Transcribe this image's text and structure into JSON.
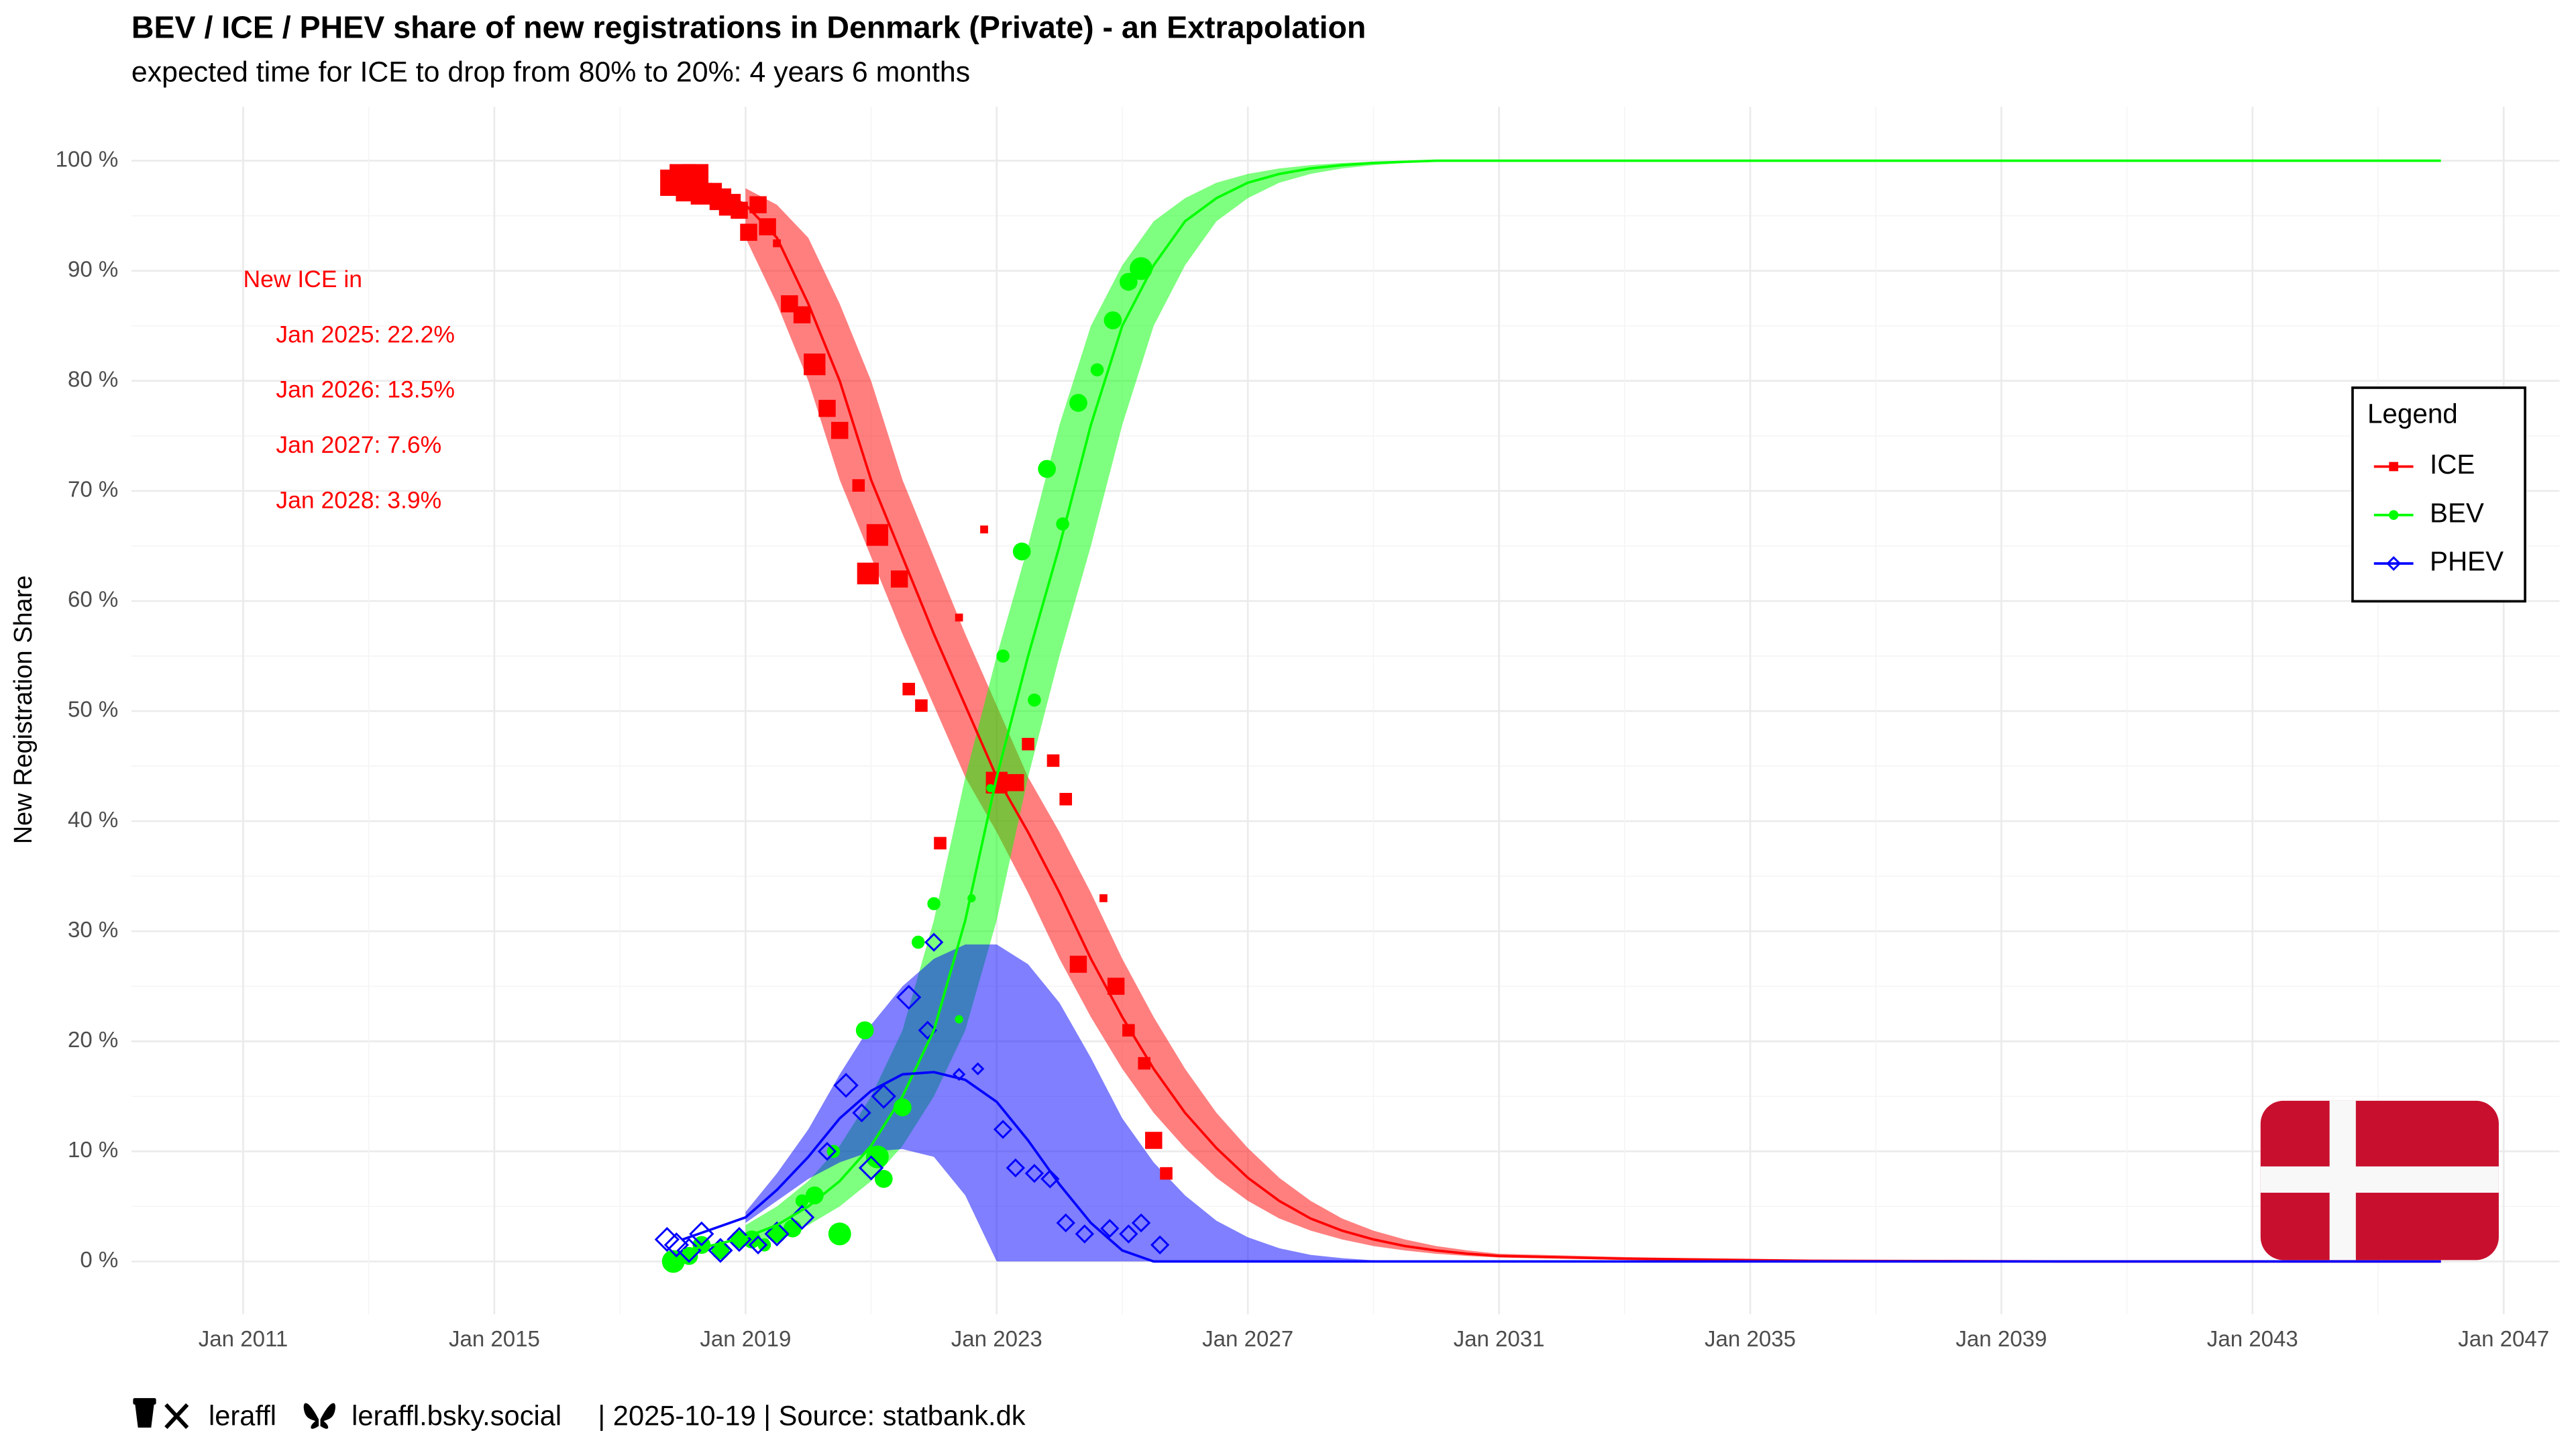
{
  "chart_data": {
    "type": "scatter",
    "title": "BEV / ICE / PHEV share of new registrations in Denmark (Private) - an Extrapolation",
    "subtitle": "expected time for ICE to drop from 80% to 20%: 4 years 6 months",
    "y_label": "New Registration Share",
    "annotations": [
      "New ICE in",
      "Jan 2025: 22.2%",
      "Jan 2026: 13.5%",
      "Jan 2027: 7.6%",
      "Jan 2028: 3.9%"
    ],
    "caption": [
      "leraffl",
      "leraffl.bsky.social",
      "| 2025-10-19 | Source: statbank.dk"
    ],
    "legend_title": "Legend",
    "legend": "right",
    "grid": true,
    "xlim": [
      2009.22,
      2047.89
    ],
    "ylim": [
      -4.8,
      104.9
    ],
    "xticks": [
      {
        "value": 2011,
        "label": "Jan 2011"
      },
      {
        "value": 2015,
        "label": "Jan 2015"
      },
      {
        "value": 2019,
        "label": "Jan 2019"
      },
      {
        "value": 2023,
        "label": "Jan 2023"
      },
      {
        "value": 2027,
        "label": "Jan 2027"
      },
      {
        "value": 2031,
        "label": "Jan 2031"
      },
      {
        "value": 2035,
        "label": "Jan 2035"
      },
      {
        "value": 2039,
        "label": "Jan 2039"
      },
      {
        "value": 2043,
        "label": "Jan 2043"
      },
      {
        "value": 2047,
        "label": "Jan 2047"
      }
    ],
    "yticks": [
      {
        "value": 0,
        "label": "0 %"
      },
      {
        "value": 10,
        "label": "10 %"
      },
      {
        "value": 20,
        "label": "20 %"
      },
      {
        "value": 30,
        "label": "30 %"
      },
      {
        "value": 40,
        "label": "40 %"
      },
      {
        "value": 50,
        "label": "50 %"
      },
      {
        "value": 60,
        "label": "60 %"
      },
      {
        "value": 70,
        "label": "70 %"
      },
      {
        "value": 80,
        "label": "80 %"
      },
      {
        "value": 90,
        "label": "90 %"
      },
      {
        "value": 100,
        "label": "100 %"
      }
    ],
    "x_fit": [
      2018,
      2018.5,
      2019,
      2019.5,
      2020,
      2020.5,
      2021,
      2021.5,
      2022,
      2022.5,
      2023,
      2023.5,
      2024,
      2024.5,
      2025,
      2025.5,
      2026,
      2026.5,
      2027,
      2027.5,
      2028,
      2028.5,
      2029,
      2029.5,
      2030,
      2030.5,
      2031,
      2033,
      2036,
      2040,
      2046
    ],
    "series": [
      {
        "name": "ICE",
        "color": "#ff0000",
        "shape": "square",
        "x": [
          2017.85,
          2018.0,
          2018.1,
          2018.2,
          2018.3,
          2018.45,
          2018.6,
          2018.75,
          2018.9,
          2019.05,
          2019.2,
          2019.35,
          2019.5,
          2019.7,
          2019.9,
          2020.1,
          2020.3,
          2020.5,
          2020.8,
          2021.1,
          2020.95,
          2021.45,
          2021.6,
          2021.8,
          2022.1,
          2022.4,
          2022.8,
          2023.0,
          2023.3,
          2023.5,
          2023.9,
          2024.1,
          2024.3,
          2024.7,
          2024.9,
          2025.1,
          2025.35,
          2025.5,
          2025.7
        ],
        "values": [
          98,
          98.5,
          97.5,
          98.5,
          97,
          97,
          96.5,
          96,
          95.5,
          93.5,
          96,
          94,
          92.5,
          87,
          86,
          81.5,
          77.5,
          75.5,
          70.5,
          66,
          62.5,
          62,
          52,
          50.5,
          38,
          58.5,
          66.5,
          43.5,
          43.5,
          47,
          45.5,
          42,
          27,
          33,
          25,
          21,
          18,
          11,
          8
        ],
        "sizes": [
          5,
          5,
          5,
          5,
          4,
          4,
          4,
          4,
          3,
          3,
          3,
          3,
          1,
          3,
          3,
          4,
          3,
          3,
          2,
          4,
          4,
          3,
          2,
          2,
          2,
          1,
          1,
          4,
          3,
          2,
          2,
          2,
          3,
          1,
          3,
          2,
          2,
          3,
          2
        ],
        "fit": [
          98,
          97.5,
          96,
          93,
          87,
          80,
          71,
          64,
          57,
          50.5,
          44,
          39,
          33.5,
          27.5,
          22.2,
          17.5,
          13.5,
          10.3,
          7.6,
          5.5,
          3.9,
          2.8,
          2,
          1.4,
          1,
          0.7,
          0.5,
          0.25,
          0.06,
          0,
          0
        ],
        "fit_lower": [
          null,
          null,
          93,
          87,
          80,
          71,
          64,
          57,
          50.5,
          44,
          39,
          33.5,
          27.5,
          22.2,
          17.5,
          13.5,
          10.3,
          7.6,
          5.5,
          3.9,
          2.8,
          2,
          1.4,
          1,
          0.7,
          0.5,
          0.35,
          0.15,
          0.03,
          0,
          0
        ],
        "fit_upper": [
          null,
          null,
          97.5,
          96,
          93,
          87,
          80,
          71,
          64,
          57,
          50.5,
          44,
          39,
          33.5,
          27.5,
          22.2,
          17.5,
          13.5,
          10.3,
          7.6,
          5.5,
          3.9,
          2.8,
          2,
          1.4,
          1,
          0.7,
          0.4,
          0.1,
          0,
          0
        ]
      },
      {
        "name": "BEV",
        "color": "#00ff00",
        "shape": "circle",
        "x": [
          2017.85,
          2018.1,
          2018.3,
          2018.6,
          2018.9,
          2019.1,
          2019.3,
          2019.5,
          2019.75,
          2019.9,
          2020.1,
          2020.4,
          2020.5,
          2020.9,
          2021.1,
          2021.2,
          2021.5,
          2021.75,
          2022.0,
          2022.4,
          2022.6,
          2022.9,
          2023.1,
          2023.4,
          2023.6,
          2023.8,
          2024.05,
          2024.3,
          2024.6,
          2024.85,
          2025.1,
          2025.3
        ],
        "values": [
          0,
          0.5,
          1.5,
          1,
          2,
          2,
          1.5,
          2.5,
          3,
          5.5,
          6,
          10,
          2.5,
          21,
          9.5,
          7.5,
          14,
          29,
          32.5,
          22,
          33,
          43,
          55,
          64.5,
          51,
          72,
          67,
          78,
          81,
          85.5,
          89,
          90.2
        ],
        "sizes": [
          4,
          3,
          3,
          3,
          3,
          3,
          2,
          3,
          3,
          2,
          3,
          2,
          4,
          3,
          4,
          3,
          3,
          2,
          2,
          1,
          1,
          1,
          2,
          3,
          2,
          3,
          2,
          3,
          2,
          3,
          3,
          4
        ],
        "fit": [
          1,
          1.5,
          2.2,
          3.3,
          5,
          7.3,
          10.5,
          15,
          21,
          31,
          44,
          55,
          65,
          76,
          85,
          90.5,
          94.5,
          96.6,
          98,
          98.8,
          99.3,
          99.6,
          99.8,
          99.9,
          100,
          100,
          100,
          100,
          100,
          100,
          100
        ],
        "fit_lower": [
          null,
          null,
          1.5,
          2.2,
          3.3,
          5,
          7.3,
          10.5,
          15,
          21,
          31,
          44,
          55,
          65,
          76,
          85,
          90.5,
          94.5,
          96.6,
          98,
          98.8,
          99.3,
          99.6,
          99.8,
          99.9,
          100,
          100,
          100,
          100,
          100,
          100
        ],
        "fit_upper": [
          null,
          null,
          3.3,
          5,
          7.3,
          10.5,
          15,
          21,
          31,
          44,
          55,
          65,
          76,
          85,
          90.5,
          94.5,
          96.6,
          98,
          98.8,
          99.3,
          99.6,
          99.8,
          99.9,
          100,
          100,
          100,
          100,
          100,
          100,
          100,
          100
        ]
      },
      {
        "name": "PHEV",
        "color": "#0000ff",
        "shape": "diamond",
        "x": [
          2017.75,
          2017.9,
          2018.1,
          2018.3,
          2018.6,
          2018.9,
          2019.2,
          2019.5,
          2019.9,
          2020.3,
          2020.6,
          2020.85,
          2021.0,
          2021.2,
          2021.6,
          2021.9,
          2022.0,
          2022.4,
          2022.7,
          2023.1,
          2023.3,
          2023.6,
          2023.85,
          2024.1,
          2024.4,
          2024.8,
          2025.1,
          2025.3,
          2025.6
        ],
        "values": [
          2,
          1.5,
          1,
          2.5,
          1,
          2,
          1.5,
          2.5,
          4,
          10,
          16,
          13.5,
          8.5,
          15,
          24,
          21,
          29,
          17,
          17.5,
          12,
          8.5,
          8,
          7.5,
          3.5,
          2.5,
          3,
          2.5,
          3.5,
          1.5
        ],
        "sizes": [
          3,
          3,
          3,
          3,
          3,
          3,
          2,
          3,
          3,
          2,
          3,
          2,
          3,
          3,
          3,
          2,
          2,
          1,
          1,
          2,
          2,
          2,
          2,
          2,
          2,
          2,
          2,
          2,
          2
        ],
        "fit": [
          2,
          3,
          4,
          6.5,
          9.5,
          13,
          15.5,
          17,
          17.2,
          16.5,
          14.5,
          11,
          7,
          3.5,
          1,
          0,
          0,
          0,
          0,
          0,
          0,
          0,
          0,
          0,
          0,
          0,
          0,
          0,
          0,
          0,
          0
        ],
        "fit_lower": [
          null,
          null,
          3.5,
          5.5,
          7.5,
          9,
          10,
          10.2,
          9.5,
          6,
          0,
          0,
          0,
          0,
          0,
          0,
          0,
          0,
          0,
          0,
          0,
          0,
          0,
          0,
          0,
          0,
          0,
          0,
          0,
          0,
          0
        ],
        "fit_upper": [
          null,
          null,
          4.5,
          8,
          12,
          17,
          21.5,
          25,
          27.5,
          28.8,
          28.8,
          27,
          23.5,
          18.5,
          13,
          9,
          6,
          3.7,
          2.2,
          1.2,
          0.6,
          0.3,
          0.1,
          0,
          0,
          0,
          0,
          0,
          0,
          0,
          0
        ]
      }
    ]
  }
}
